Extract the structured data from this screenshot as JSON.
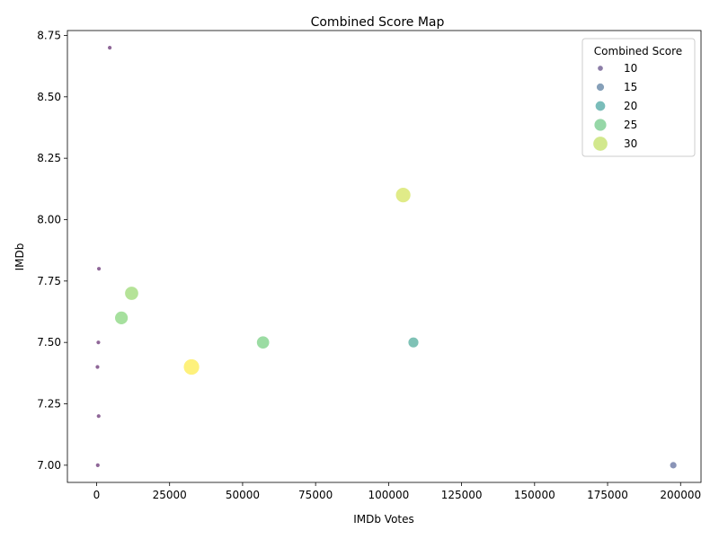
{
  "chart_data": {
    "type": "scatter",
    "title": "Combined Score Map",
    "xlabel": "IMDb Votes",
    "ylabel": "IMDb",
    "xlim": [
      -10000,
      207000
    ],
    "ylim": [
      6.93,
      8.77
    ],
    "xticks": [
      0,
      25000,
      50000,
      75000,
      100000,
      125000,
      150000,
      175000,
      200000
    ],
    "xtick_labels": [
      "0",
      "25000",
      "50000",
      "75000",
      "100000",
      "125000",
      "150000",
      "175000",
      "200000"
    ],
    "yticks": [
      7.0,
      7.25,
      7.5,
      7.75,
      8.0,
      8.25,
      8.5,
      8.75
    ],
    "ytick_labels": [
      "7.00",
      "7.25",
      "7.50",
      "7.75",
      "8.00",
      "8.25",
      "8.50",
      "8.75"
    ],
    "grid": false,
    "size_range": [
      7,
      33
    ],
    "color_range": [
      7,
      33
    ],
    "points": [
      {
        "x": 4500,
        "y": 8.7,
        "score": 7
      },
      {
        "x": 105000,
        "y": 8.1,
        "score": 31
      },
      {
        "x": 800,
        "y": 7.8,
        "score": 7
      },
      {
        "x": 12000,
        "y": 7.7,
        "score": 28
      },
      {
        "x": 8500,
        "y": 7.6,
        "score": 27
      },
      {
        "x": 600,
        "y": 7.5,
        "score": 7
      },
      {
        "x": 57000,
        "y": 7.5,
        "score": 26
      },
      {
        "x": 108500,
        "y": 7.5,
        "score": 21
      },
      {
        "x": 300,
        "y": 7.4,
        "score": 7
      },
      {
        "x": 32500,
        "y": 7.4,
        "score": 33
      },
      {
        "x": 700,
        "y": 7.2,
        "score": 7
      },
      {
        "x": 400,
        "y": 7.0,
        "score": 7
      },
      {
        "x": 197500,
        "y": 7.0,
        "score": 13
      }
    ],
    "legend": {
      "title": "Combined Score",
      "position": "top-right",
      "entries": [
        {
          "label": "10",
          "score": 10
        },
        {
          "label": "15",
          "score": 15
        },
        {
          "label": "20",
          "score": 20
        },
        {
          "label": "25",
          "score": 25
        },
        {
          "label": "30",
          "score": 30
        }
      ]
    }
  }
}
